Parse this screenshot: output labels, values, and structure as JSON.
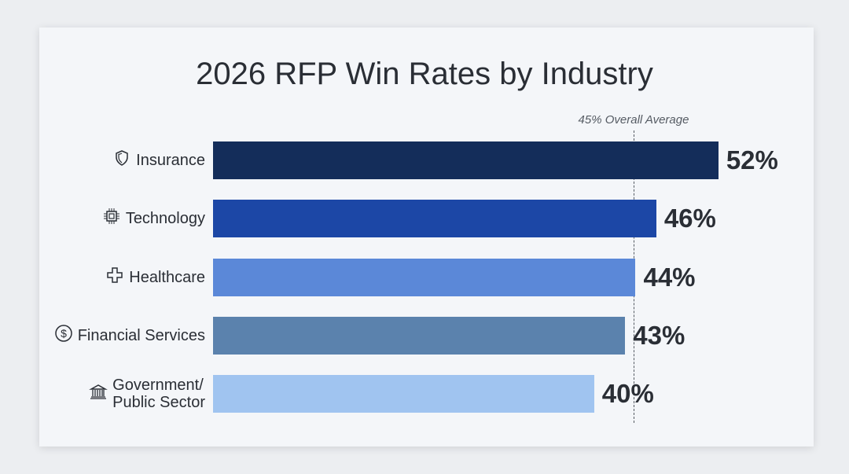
{
  "chart_data": {
    "type": "bar",
    "orientation": "horizontal",
    "title": "2026 RFP Win Rates by Industry",
    "categories": [
      "Insurance",
      "Technology",
      "Healthcare",
      "Financial Services",
      "Government/\nPublic Sector"
    ],
    "values": [
      52,
      46,
      44,
      43,
      40
    ],
    "value_labels": [
      "52%",
      "46%",
      "44%",
      "43%",
      "40%"
    ],
    "icons": [
      "shield-icon",
      "chip-icon",
      "medical-cross-icon",
      "dollar-circle-icon",
      "bank-building-icon"
    ],
    "colors": [
      "#142d5a",
      "#1c47a6",
      "#5b88d8",
      "#5b82ad",
      "#a0c4f0"
    ],
    "reference_line": {
      "value": 45,
      "label": "45% Overall Average"
    },
    "grid": false,
    "legend": "none"
  }
}
